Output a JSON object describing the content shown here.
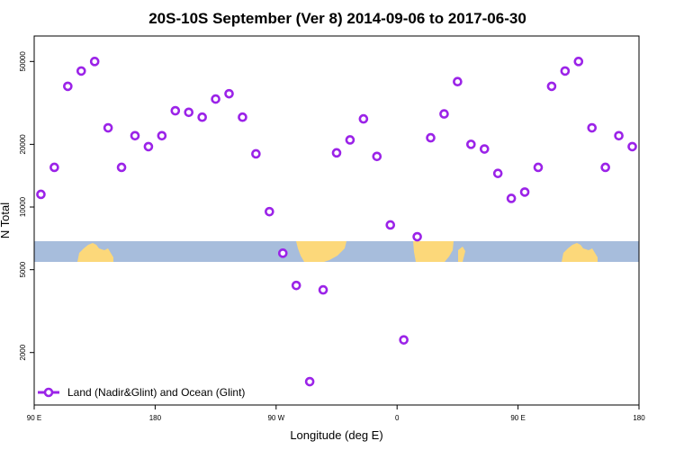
{
  "chart_data": {
    "type": "scatter",
    "title": "20S-10S September (Ver 8)   2014-09-06 to 2017-06-30",
    "xlabel": "Longitude (deg E)",
    "ylabel": "N Total",
    "y_scale": "log",
    "xlim": [
      90,
      540
    ],
    "ylim": [
      1300,
      60000
    ],
    "x_ticks": [
      {
        "value": 90,
        "label": "90 E"
      },
      {
        "value": 180,
        "label": "180"
      },
      {
        "value": 270,
        "label": "90 W"
      },
      {
        "value": 360,
        "label": "0"
      },
      {
        "value": 450,
        "label": "90 E"
      },
      {
        "value": 540,
        "label": "180"
      }
    ],
    "y_ticks": [
      {
        "value": 2000,
        "label": "2000"
      },
      {
        "value": 5000,
        "label": "5000"
      },
      {
        "value": 10000,
        "label": "10000"
      },
      {
        "value": 20000,
        "label": "20000"
      },
      {
        "value": 50000,
        "label": "50000"
      }
    ],
    "grid": false,
    "legend_position": "bottom-left",
    "map_strip": {
      "ocean_color": "#a7bddc",
      "land_color": "#fcd87a",
      "lat_range": [
        -20,
        -10
      ]
    },
    "series": [
      {
        "name": "Land (Nadir&Glint) and Ocean (Glint)",
        "color": "#9b23e8",
        "marker": "open-circle",
        "x": [
          95,
          105,
          115,
          125,
          135,
          145,
          155,
          165,
          175,
          185,
          195,
          205,
          215,
          225,
          235,
          245,
          255,
          265,
          275,
          285,
          295,
          305,
          315,
          325,
          335,
          345,
          355,
          365,
          375,
          385,
          395,
          405,
          415,
          425,
          435,
          445,
          455,
          465,
          475,
          485,
          495,
          505,
          515,
          525,
          535
        ],
        "y": [
          11500,
          15500,
          38000,
          45000,
          50000,
          24000,
          15500,
          22000,
          19500,
          22000,
          29000,
          28500,
          27000,
          33000,
          35000,
          27000,
          18000,
          9500,
          6000,
          4200,
          1450,
          4000,
          18200,
          21000,
          26500,
          17500,
          8200,
          2300,
          7200,
          21500,
          28000,
          40000,
          20000,
          19000,
          14500,
          11000,
          11800,
          15500,
          38000,
          45000,
          50000,
          24000,
          15500,
          22000,
          19500
        ]
      }
    ]
  }
}
